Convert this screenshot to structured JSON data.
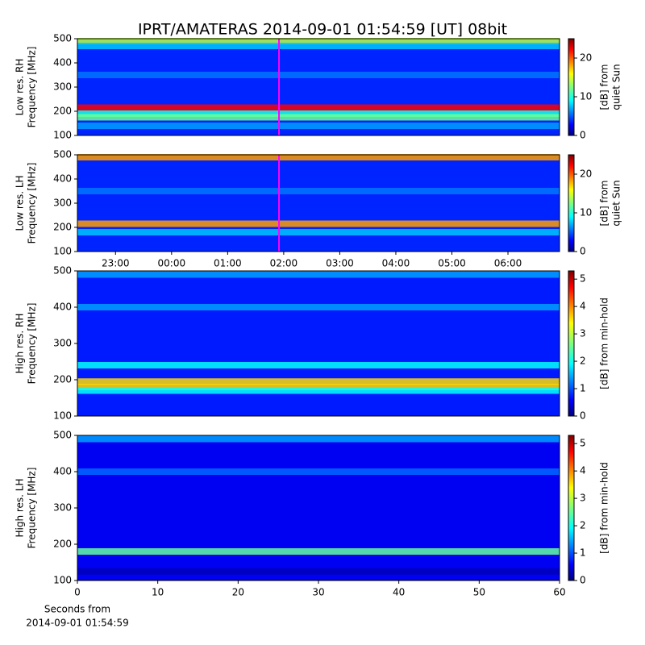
{
  "title": "IPRT/AMATERAS 2014-09-01 01:54:59 [UT]   08bit",
  "chart_data": [
    {
      "type": "heatmap",
      "ylabel": [
        "Low res. RH",
        "Frequency [MHz]"
      ],
      "ylim": [
        100,
        500
      ],
      "yticks": [
        100,
        200,
        300,
        400,
        500
      ],
      "xlim": [
        22.32,
        30.92
      ],
      "zlim": [
        0,
        25
      ],
      "zticks": [
        0,
        10,
        20
      ],
      "zlabel": [
        "[dB] from",
        "quiet Sun"
      ],
      "background": 4,
      "bands": [
        {
          "y": 490,
          "value": 14
        },
        {
          "y": 470,
          "value": 8
        },
        {
          "y": 350,
          "value": 6
        },
        {
          "y": 215,
          "value": 22
        },
        {
          "y": 190,
          "value": 10
        },
        {
          "y": 175,
          "value": 12
        },
        {
          "y": 140,
          "value": 7
        }
      ],
      "marker_x": 25.916,
      "marker_color": "#ff00ff"
    },
    {
      "type": "heatmap",
      "ylabel": [
        "Low res. LH",
        "Frequency [MHz]"
      ],
      "ylim": [
        100,
        500
      ],
      "yticks": [
        100,
        200,
        300,
        400,
        500
      ],
      "xlim": [
        22.32,
        30.92
      ],
      "xticks": [
        {
          "value": 23,
          "label": "23:00"
        },
        {
          "value": 24,
          "label": "00:00"
        },
        {
          "value": 25,
          "label": "01:00"
        },
        {
          "value": 26,
          "label": "02:00"
        },
        {
          "value": 27,
          "label": "03:00"
        },
        {
          "value": 28,
          "label": "04:00"
        },
        {
          "value": 29,
          "label": "05:00"
        },
        {
          "value": 30,
          "label": "06:00"
        }
      ],
      "zlim": [
        0,
        25
      ],
      "zticks": [
        0,
        10,
        20
      ],
      "zlabel": [
        "[dB] from",
        "quiet Sun"
      ],
      "background": 4,
      "bands": [
        {
          "y": 490,
          "value": 18
        },
        {
          "y": 350,
          "value": 6
        },
        {
          "y": 215,
          "value": 18
        },
        {
          "y": 180,
          "value": 8
        }
      ],
      "marker_x": 25.916,
      "marker_color": "#ff00ff"
    },
    {
      "type": "heatmap",
      "ylabel": [
        "High res. RH",
        "Frequency [MHz]"
      ],
      "ylim": [
        100,
        500
      ],
      "yticks": [
        100,
        200,
        300,
        400,
        500
      ],
      "xlim": [
        0,
        60
      ],
      "zlim": [
        0,
        5.3
      ],
      "zticks": [
        0,
        1,
        2,
        3,
        4,
        5
      ],
      "zlabel": [
        "[dB] from min-hold"
      ],
      "background": 0.8,
      "bands": [
        {
          "y": 490,
          "value": 1.5
        },
        {
          "y": 400,
          "value": 1.5
        },
        {
          "y": 240,
          "value": 2
        },
        {
          "y": 195,
          "value": 3.5
        },
        {
          "y": 180,
          "value": 3.5
        },
        {
          "y": 170,
          "value": 2
        }
      ]
    },
    {
      "type": "heatmap",
      "ylabel": [
        "High res. LH",
        "Frequency [MHz]"
      ],
      "ylim": [
        100,
        500
      ],
      "yticks": [
        100,
        200,
        300,
        400,
        500
      ],
      "xlim": [
        0,
        60
      ],
      "xticks": [
        0,
        10,
        20,
        30,
        40,
        50,
        60
      ],
      "xlabel": [
        "Seconds from",
        "2014-09-01 01:54:59"
      ],
      "zlim": [
        0,
        5.3
      ],
      "zticks": [
        0,
        1,
        2,
        3,
        4,
        5
      ],
      "zlabel": [
        "[dB] from min-hold"
      ],
      "background": 0.6,
      "bands": [
        {
          "y": 490,
          "value": 1.5
        },
        {
          "y": 400,
          "value": 1.2
        },
        {
          "y": 180,
          "value": 2.5
        },
        {
          "y": 125,
          "value": 0.3
        }
      ]
    }
  ]
}
